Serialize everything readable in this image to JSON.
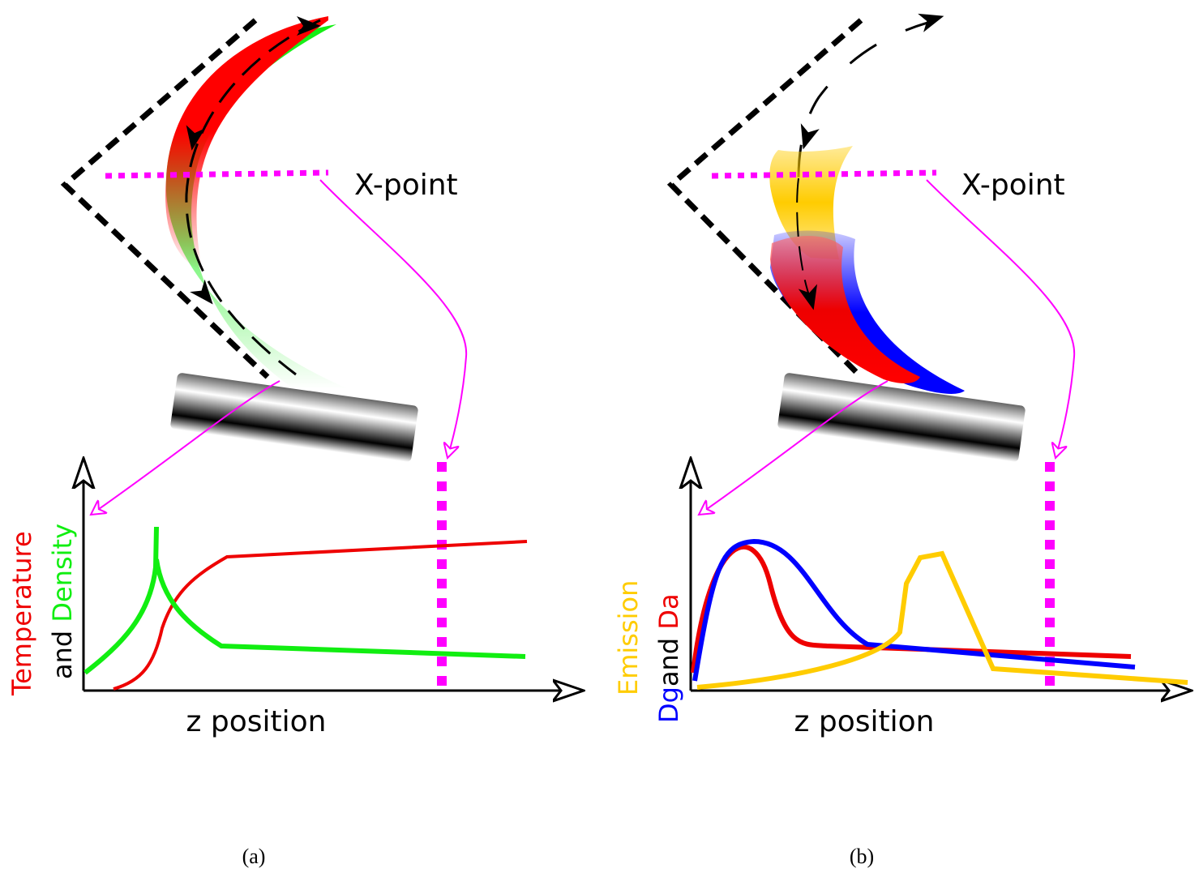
{
  "panels": [
    {
      "x_point_label": "X-point",
      "x_axis_label": "z position",
      "y_axis_label": {
        "line1": [
          "Temperature"
        ],
        "line2": [
          "and",
          "Density"
        ]
      },
      "caption": "(a)"
    },
    {
      "x_point_label": "X-point",
      "x_axis_label": "z position",
      "y_axis_label": {
        "line1": [
          "Emission"
        ],
        "line2": [
          "Dg",
          "and",
          "Da"
        ]
      },
      "caption": "(b)"
    }
  ]
}
